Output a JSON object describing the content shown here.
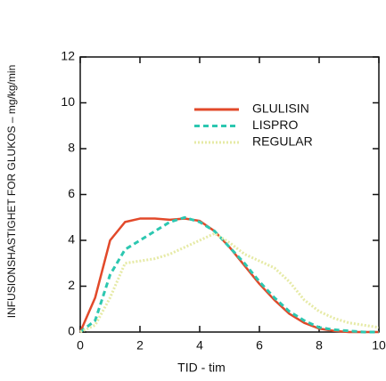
{
  "chart_data": {
    "type": "line",
    "xlabel": "TID  - tim",
    "ylabel": "INFUSIONSHASTIGHET FOR GLUKOS – mg/kg/min",
    "x": [
      0,
      0.5,
      1,
      1.5,
      2,
      2.5,
      3,
      3.5,
      4,
      4.5,
      5,
      5.5,
      6,
      6.5,
      7,
      7.5,
      8,
      8.5,
      9,
      9.5,
      10
    ],
    "series": [
      {
        "name": "GLULISIN",
        "color": "#e2492a",
        "linestyle": "solid",
        "values": [
          0,
          1.5,
          4.0,
          4.8,
          4.95,
          4.95,
          4.9,
          4.95,
          4.85,
          4.4,
          3.7,
          2.9,
          2.1,
          1.4,
          0.8,
          0.4,
          0.15,
          0.05,
          0,
          0,
          0
        ]
      },
      {
        "name": "LISPRO",
        "color": "#2cc7b0",
        "linestyle": "dashed",
        "values": [
          0,
          0.5,
          2.5,
          3.6,
          4.0,
          4.4,
          4.8,
          5.0,
          4.8,
          4.4,
          3.7,
          3.0,
          2.2,
          1.5,
          0.9,
          0.5,
          0.2,
          0.1,
          0.05,
          0,
          0
        ]
      },
      {
        "name": "REGULAR",
        "color": "#e6eaa6",
        "linestyle": "dotted",
        "values": [
          0,
          0.3,
          1.5,
          3.0,
          3.1,
          3.2,
          3.4,
          3.7,
          4.0,
          4.3,
          3.9,
          3.4,
          3.1,
          2.8,
          2.2,
          1.4,
          0.9,
          0.6,
          0.4,
          0.3,
          0.2
        ]
      }
    ],
    "xlim": [
      0,
      10
    ],
    "xticks": [
      0,
      2,
      4,
      6,
      8,
      10
    ],
    "ylim": [
      0,
      12
    ],
    "yticks": [
      0,
      2,
      4,
      6,
      8,
      10,
      12
    ],
    "legend": "upper right"
  }
}
